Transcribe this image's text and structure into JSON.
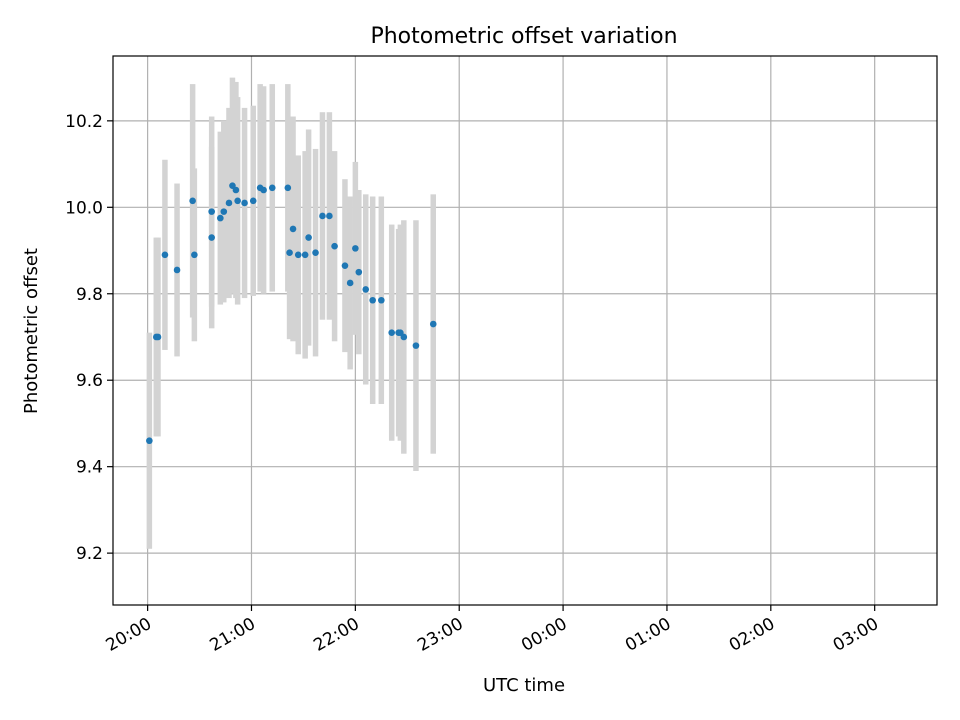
{
  "chart_data": {
    "type": "scatter",
    "title": "Photometric offset variation",
    "xlabel": "UTC time",
    "ylabel": "Photometric offset",
    "xlim": [
      "19:40",
      "03:36"
    ],
    "ylim": [
      9.08,
      10.35
    ],
    "x_ticks": [
      "20:00",
      "21:00",
      "22:00",
      "23:00",
      "00:00",
      "01:00",
      "02:00",
      "03:00"
    ],
    "y_ticks": [
      9.2,
      9.4,
      9.6,
      9.8,
      10.0,
      10.2
    ],
    "grid": true,
    "legend": "none",
    "colors": {
      "point": "#1f77b4",
      "errorbar": "#d3d3d3"
    },
    "series": [
      {
        "x": [
          "20:01",
          "20:05",
          "20:06",
          "20:10",
          "20:17",
          "20:26",
          "20:27",
          "20:37",
          "20:37",
          "20:42",
          "20:44",
          "20:47",
          "20:49",
          "20:51",
          "20:52",
          "20:56",
          "21:01",
          "21:05",
          "21:07",
          "21:12",
          "21:21",
          "21:22",
          "21:24",
          "21:27",
          "21:31",
          "21:33",
          "21:37",
          "21:41",
          "21:45",
          "21:48",
          "21:54",
          "21:57",
          "22:00",
          "22:02",
          "22:06",
          "22:10",
          "22:15",
          "22:21",
          "22:25",
          "22:26",
          "22:28",
          "22:35",
          "22:45"
        ],
        "y": [
          9.46,
          9.7,
          9.7,
          9.89,
          9.855,
          10.015,
          9.89,
          9.93,
          9.99,
          9.975,
          9.99,
          10.01,
          10.05,
          10.04,
          10.015,
          10.01,
          10.015,
          10.045,
          10.04,
          10.045,
          10.045,
          9.895,
          9.95,
          9.89,
          9.89,
          9.93,
          9.895,
          9.98,
          9.98,
          9.91,
          9.865,
          9.825,
          9.905,
          9.85,
          9.81,
          9.785,
          9.785,
          9.71,
          9.71,
          9.71,
          9.7,
          9.68,
          9.73
        ],
        "yerr": [
          0.25,
          0.23,
          0.23,
          0.22,
          0.2,
          0.27,
          0.2,
          0.21,
          0.22,
          0.2,
          0.21,
          0.22,
          0.25,
          0.25,
          0.24,
          0.22,
          0.22,
          0.24,
          0.24,
          0.24,
          0.24,
          0.2,
          0.26,
          0.23,
          0.24,
          0.25,
          0.24,
          0.24,
          0.24,
          0.22,
          0.2,
          0.2,
          0.2,
          0.19,
          0.22,
          0.24,
          0.24,
          0.25,
          0.24,
          0.25,
          0.27,
          0.29,
          0.3
        ]
      }
    ]
  }
}
